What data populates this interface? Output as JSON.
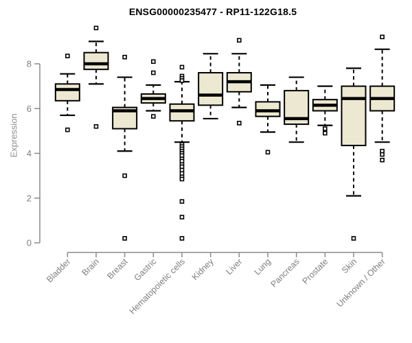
{
  "title": "ENSG00000235477 - RP11-122G18.5",
  "colors": {
    "background": "#ffffff",
    "box_fill": "#ede8d1",
    "box_stroke": "#000000",
    "median_color": "#000000",
    "whisker_color": "#000000",
    "outlier_fill": "#ffffff",
    "axis_color": "#8a8a8a",
    "tick_label_color": "#7e7e7e",
    "title_color": "#000000",
    "y_label_color": "#8d8d8d"
  },
  "chart_data": {
    "type": "boxplot",
    "title": "ENSG00000235477 - RP11-122G18.5",
    "xlabel": "",
    "ylabel": "Expression",
    "ylim": [
      0,
      9.8
    ],
    "yticks": [
      0,
      2,
      4,
      6,
      8
    ],
    "grid": false,
    "legend": false,
    "whisker_style": "dashed",
    "outlier_marker": "open-square",
    "x_label_rotation_deg": 45,
    "categories": [
      "Bladder",
      "Brain",
      "Breast",
      "Gastric",
      "Hematopoietic cells",
      "Kidney",
      "Liver",
      "Lung",
      "Pancreas",
      "Prostate",
      "Skin",
      "Unknown / Other"
    ],
    "series": [
      {
        "category": "Bladder",
        "whisker_low": 5.7,
        "q1": 6.35,
        "median": 6.85,
        "q3": 7.1,
        "whisker_high": 7.55,
        "outliers": [
          8.35,
          5.05
        ]
      },
      {
        "category": "Brain",
        "whisker_low": 7.1,
        "q1": 7.75,
        "median": 8.0,
        "q3": 8.5,
        "whisker_high": 9.0,
        "outliers": [
          9.6,
          5.2
        ]
      },
      {
        "category": "Breast",
        "whisker_low": 4.1,
        "q1": 5.1,
        "median": 5.9,
        "q3": 6.05,
        "whisker_high": 7.4,
        "outliers": [
          8.3,
          3.0,
          0.2
        ]
      },
      {
        "category": "Gastric",
        "whisker_low": 5.9,
        "q1": 6.25,
        "median": 6.45,
        "q3": 6.65,
        "whisker_high": 7.05,
        "outliers": [
          8.1,
          7.6,
          5.65
        ]
      },
      {
        "category": "Hematopoietic cells",
        "whisker_low": 4.5,
        "q1": 5.45,
        "median": 5.9,
        "q3": 6.2,
        "whisker_high": 7.2,
        "outliers": [
          7.85,
          7.45,
          7.35,
          7.25,
          4.4,
          4.3,
          4.2,
          4.1,
          4.0,
          3.9,
          3.75,
          3.65,
          3.5,
          3.4,
          3.25,
          3.1,
          2.95,
          2.85,
          1.85,
          1.15,
          0.2
        ]
      },
      {
        "category": "Kidney",
        "whisker_low": 5.55,
        "q1": 6.15,
        "median": 6.6,
        "q3": 7.6,
        "whisker_high": 8.45,
        "outliers": []
      },
      {
        "category": "Liver",
        "whisker_low": 6.05,
        "q1": 6.75,
        "median": 7.2,
        "q3": 7.6,
        "whisker_high": 8.45,
        "outliers": [
          9.05,
          5.35
        ]
      },
      {
        "category": "Lung",
        "whisker_low": 4.95,
        "q1": 5.65,
        "median": 5.9,
        "q3": 6.3,
        "whisker_high": 7.05,
        "outliers": [
          4.05
        ]
      },
      {
        "category": "Pancreas",
        "whisker_low": 4.5,
        "q1": 5.3,
        "median": 5.55,
        "q3": 6.8,
        "whisker_high": 7.4,
        "outliers": []
      },
      {
        "category": "Prostate",
        "whisker_low": 5.25,
        "q1": 5.9,
        "median": 6.15,
        "q3": 6.4,
        "whisker_high": 7.0,
        "outliers": [
          5.1,
          4.9
        ]
      },
      {
        "category": "Skin",
        "whisker_low": 2.1,
        "q1": 4.35,
        "median": 6.45,
        "q3": 7.0,
        "whisker_high": 7.8,
        "outliers": [
          0.2
        ]
      },
      {
        "category": "Unknown / Other",
        "whisker_low": 4.5,
        "q1": 5.9,
        "median": 6.45,
        "q3": 7.0,
        "whisker_high": 8.65,
        "outliers": [
          9.2,
          4.1,
          3.95,
          3.7
        ]
      }
    ]
  }
}
